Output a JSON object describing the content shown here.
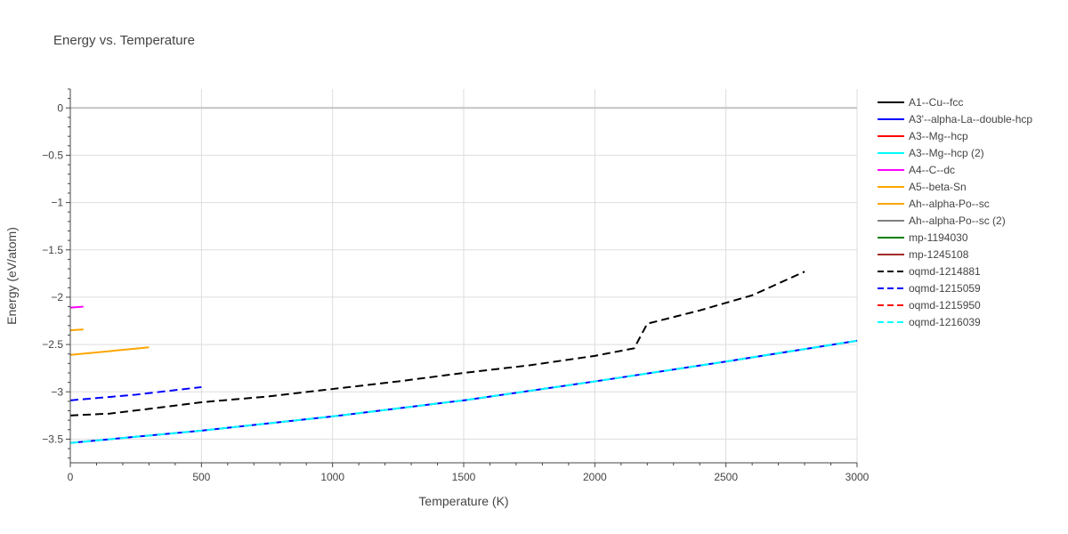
{
  "chart_data": {
    "type": "line",
    "title": "Energy vs. Temperature",
    "xlabel": "Temperature (K)",
    "ylabel": "Energy (eV/atom)",
    "xlim": [
      0,
      3000
    ],
    "ylim": [
      -3.75,
      0.2
    ],
    "x_ticks": [
      0,
      500,
      1000,
      1500,
      2000,
      2500,
      3000
    ],
    "x_tick_labels": [
      "0",
      "500",
      "1000",
      "1500",
      "2000",
      "2500",
      "3000"
    ],
    "y_ticks": [
      0,
      -0.5,
      -1,
      -1.5,
      -2,
      -2.5,
      -3,
      -3.5
    ],
    "y_tick_labels": [
      "0",
      "−0.5",
      "−1",
      "−1.5",
      "−2",
      "−2.5",
      "−3",
      "−3.5"
    ],
    "grid": true,
    "legend_position": "right",
    "series": [
      {
        "name": "A1--Cu--fcc",
        "color": "#000000",
        "dash": "solid",
        "x": [],
        "y": []
      },
      {
        "name": "A3'--alpha-La--double-hcp",
        "color": "#0000ff",
        "dash": "solid",
        "x": [
          0,
          500,
          1000,
          1500,
          2000,
          2500,
          3000
        ],
        "y": [
          -3.54,
          -3.41,
          -3.26,
          -3.09,
          -2.89,
          -2.68,
          -2.46
        ]
      },
      {
        "name": "A3--Mg--hcp",
        "color": "#ff0000",
        "dash": "solid",
        "x": [],
        "y": []
      },
      {
        "name": "A3--Mg--hcp (2)",
        "color": "#00ffff",
        "dash": "solid",
        "x": [],
        "y": []
      },
      {
        "name": "A4--C--dc",
        "color": "#ff00ff",
        "dash": "solid",
        "x": [
          0,
          50
        ],
        "y": [
          -2.11,
          -2.1
        ]
      },
      {
        "name": "A5--beta-Sn",
        "color": "#ffa500",
        "dash": "solid",
        "x": [
          0,
          300
        ],
        "y": [
          -2.61,
          -2.53
        ]
      },
      {
        "name": "Ah--alpha-Po--sc",
        "color": "#ffa500",
        "dash": "solid",
        "x": [
          0,
          50
        ],
        "y": [
          -2.35,
          -2.34
        ]
      },
      {
        "name": "Ah--alpha-Po--sc (2)",
        "color": "#808080",
        "dash": "solid",
        "x": [],
        "y": []
      },
      {
        "name": "mp-1194030",
        "color": "#008000",
        "dash": "solid",
        "x": [],
        "y": []
      },
      {
        "name": "mp-1245108",
        "color": "#a52a2a",
        "dash": "solid",
        "x": [],
        "y": []
      },
      {
        "name": "oqmd-1214881",
        "color": "#000000",
        "dash": "dash",
        "x": [
          0,
          150,
          300,
          500,
          750,
          1000,
          1250,
          1500,
          1750,
          2000,
          2150,
          2200,
          2400,
          2600,
          2800
        ],
        "y": [
          -3.25,
          -3.23,
          -3.18,
          -3.11,
          -3.05,
          -2.97,
          -2.89,
          -2.8,
          -2.72,
          -2.62,
          -2.54,
          -2.28,
          -2.14,
          -1.98,
          -1.73
        ]
      },
      {
        "name": "oqmd-1215059",
        "color": "#0000ff",
        "dash": "dash",
        "x": [
          0,
          250,
          500
        ],
        "y": [
          -3.09,
          -3.03,
          -2.95
        ]
      },
      {
        "name": "oqmd-1215950",
        "color": "#ff0000",
        "dash": "dash",
        "x": [],
        "y": []
      },
      {
        "name": "oqmd-1216039",
        "color": "#00ffff",
        "dash": "dash",
        "x": [
          0,
          500,
          1000,
          1500,
          2000,
          2500,
          3000
        ],
        "y": [
          -3.54,
          -3.41,
          -3.26,
          -3.09,
          -2.89,
          -2.68,
          -2.46
        ]
      }
    ]
  }
}
